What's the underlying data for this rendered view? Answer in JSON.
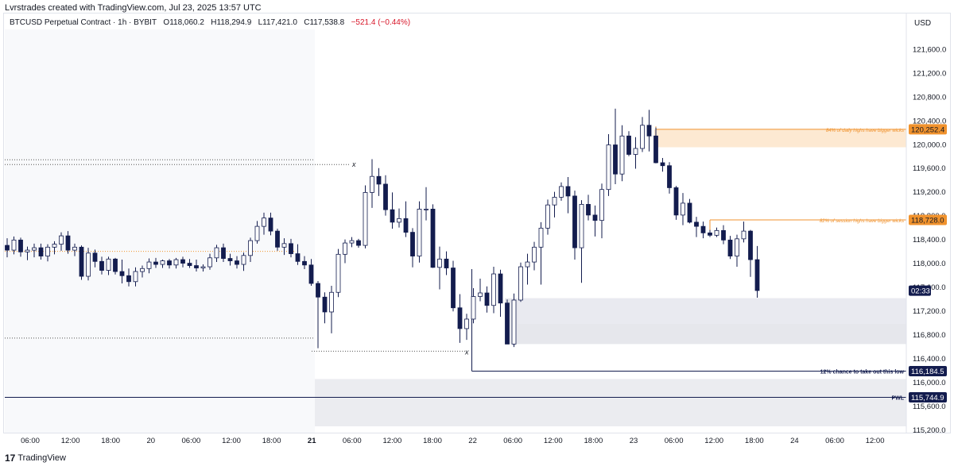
{
  "caption": "Lvrstrades created with TradingView.com, Jul 23, 2025 13:57 UTC",
  "legend": {
    "symbol": "BTCUSD Perpetual Contract · 1h · BYBIT",
    "open": "O118,060.2",
    "high": "H118,294.9",
    "low": "L117,421.0",
    "close": "C117,538.8",
    "change": "−521.4 (−0.44%)"
  },
  "currency": "USD",
  "brand": {
    "logo": "17",
    "name": "TradingView"
  },
  "colors": {
    "up_body": "#ffffff",
    "down_body": "#131c4e",
    "wick": "#131c4e",
    "orange": "#f0922d",
    "navy": "#131c4e",
    "zone_blue": "#d1d4dc",
    "zone_orange": "#fde9d2",
    "zone_grey": "#ebecf0"
  },
  "chart_data": {
    "type": "candlestick",
    "y_axis": {
      "min": 115150,
      "max": 122200,
      "ticks": [
        121600,
        121200,
        120800,
        120400,
        120000,
        119600,
        119200,
        118800,
        118400,
        118000,
        117600,
        117200,
        116800,
        116400,
        116000,
        115600,
        115200
      ],
      "tick_labels": [
        "121,600.0",
        "121,200.0",
        "120,800.0",
        "120,400.0",
        "120,000.0",
        "119,600.0",
        "119,200.0",
        "118,800.0",
        "118,400.0",
        "118,000.0",
        "117,600.0",
        "117,200.0",
        "116,800.0",
        "116,400.0",
        "116,000.0",
        "115,600.0",
        "115,200.0"
      ]
    },
    "x_axis": {
      "ticks": [
        "06:00",
        "12:00",
        "18:00",
        "20",
        "06:00",
        "12:00",
        "18:00",
        "21",
        "06:00",
        "12:00",
        "18:00",
        "22",
        "06:00",
        "12:00",
        "18:00",
        "23",
        "06:00",
        "12:00",
        "18:00",
        "24",
        "06:00",
        "12:00"
      ],
      "bold": [
        false,
        false,
        false,
        false,
        false,
        false,
        false,
        true,
        false,
        false,
        false,
        false,
        false,
        false,
        false,
        false,
        false,
        false,
        false,
        false,
        false,
        false
      ]
    },
    "candles": [
      [
        118300,
        118420,
        118100,
        118220
      ],
      [
        118220,
        118450,
        118150,
        118390
      ],
      [
        118390,
        118430,
        118110,
        118190
      ],
      [
        118190,
        118280,
        118050,
        118220
      ],
      [
        118220,
        118330,
        118100,
        118260
      ],
      [
        118260,
        118330,
        118060,
        118120
      ],
      [
        118120,
        118320,
        118030,
        118270
      ],
      [
        118270,
        118370,
        118150,
        118320
      ],
      [
        118320,
        118520,
        118210,
        118460
      ],
      [
        118460,
        118540,
        118160,
        118220
      ],
      [
        118220,
        118330,
        118120,
        118270
      ],
      [
        118270,
        118300,
        117720,
        117780
      ],
      [
        117780,
        118260,
        117710,
        118170
      ],
      [
        118170,
        118230,
        117930,
        118030
      ],
      [
        118030,
        118110,
        117810,
        117880
      ],
      [
        117880,
        118110,
        117800,
        118070
      ],
      [
        118070,
        118090,
        117810,
        117860
      ],
      [
        117860,
        118060,
        117660,
        117790
      ],
      [
        117790,
        117910,
        117610,
        117690
      ],
      [
        117690,
        117930,
        117610,
        117860
      ],
      [
        117860,
        117960,
        117760,
        117910
      ],
      [
        117910,
        118080,
        117830,
        118020
      ],
      [
        118020,
        118090,
        117920,
        117980
      ],
      [
        117980,
        118060,
        117920,
        118040
      ],
      [
        118040,
        118070,
        117910,
        117970
      ],
      [
        117970,
        118090,
        117910,
        118060
      ],
      [
        118060,
        118110,
        117930,
        118000
      ],
      [
        118000,
        118070,
        117920,
        117960
      ],
      [
        117960,
        118060,
        117860,
        117920
      ],
      [
        117920,
        117980,
        117860,
        117940
      ],
      [
        117940,
        118160,
        117890,
        118090
      ],
      [
        118090,
        118310,
        118020,
        118260
      ],
      [
        118260,
        118330,
        118020,
        118080
      ],
      [
        118080,
        118160,
        117960,
        118040
      ],
      [
        118040,
        118120,
        117910,
        117980
      ],
      [
        117980,
        118180,
        117870,
        118130
      ],
      [
        118130,
        118430,
        118020,
        118380
      ],
      [
        118380,
        118710,
        118330,
        118620
      ],
      [
        118620,
        118850,
        118480,
        118760
      ],
      [
        118760,
        118850,
        118470,
        118540
      ],
      [
        118540,
        118580,
        118210,
        118270
      ],
      [
        118270,
        118420,
        118140,
        118330
      ],
      [
        118330,
        118410,
        118100,
        118160
      ],
      [
        118160,
        118320,
        117970,
        118030
      ],
      [
        118030,
        118120,
        117900,
        117970
      ],
      [
        117970,
        118070,
        117620,
        117660
      ],
      [
        117660,
        117700,
        116570,
        117430
      ],
      [
        117430,
        117510,
        116990,
        117180
      ],
      [
        117180,
        117620,
        116820,
        117510
      ],
      [
        117510,
        118240,
        117430,
        118150
      ],
      [
        118150,
        118400,
        118000,
        118340
      ],
      [
        118340,
        118440,
        118270,
        118380
      ],
      [
        118380,
        118410,
        118260,
        118300
      ],
      [
        118300,
        119310,
        118250,
        119190
      ],
      [
        119190,
        119750,
        118930,
        119460
      ],
      [
        119460,
        119600,
        119130,
        119330
      ],
      [
        119330,
        119480,
        118800,
        118900
      ],
      [
        118900,
        119190,
        118580,
        118690
      ],
      [
        118690,
        118920,
        118600,
        118750
      ],
      [
        118750,
        119040,
        118440,
        118520
      ],
      [
        118520,
        118590,
        117930,
        118120
      ],
      [
        118120,
        119040,
        118010,
        118910
      ],
      [
        118910,
        119280,
        118720,
        118910
      ],
      [
        118910,
        118990,
        117920,
        117930
      ],
      [
        117930,
        118280,
        117560,
        118070
      ],
      [
        118070,
        118200,
        117800,
        117920
      ],
      [
        117920,
        118040,
        117190,
        117250
      ],
      [
        117250,
        117480,
        116660,
        116900
      ],
      [
        116900,
        117150,
        116710,
        117060
      ],
      [
        117060,
        117580,
        116990,
        117440
      ],
      [
        117440,
        117740,
        117360,
        117500
      ],
      [
        117500,
        117610,
        117170,
        117290
      ],
      [
        117290,
        117940,
        117160,
        117820
      ],
      [
        117820,
        117890,
        117100,
        117330
      ],
      [
        117330,
        117390,
        116650,
        116640
      ],
      [
        116640,
        117490,
        116590,
        117380
      ],
      [
        117380,
        118010,
        117350,
        117940
      ],
      [
        117940,
        118160,
        117640,
        118020
      ],
      [
        118020,
        118360,
        117880,
        118270
      ],
      [
        118270,
        118690,
        117640,
        118590
      ],
      [
        118590,
        119070,
        118480,
        118980
      ],
      [
        118980,
        119200,
        118770,
        119110
      ],
      [
        119110,
        119360,
        119050,
        119290
      ],
      [
        119290,
        119450,
        118840,
        119130
      ],
      [
        119130,
        119220,
        118060,
        118260
      ],
      [
        118260,
        119060,
        117670,
        118990
      ],
      [
        118990,
        119150,
        118720,
        118810
      ],
      [
        118810,
        118970,
        118450,
        118720
      ],
      [
        118720,
        119340,
        118420,
        119240
      ],
      [
        119240,
        120170,
        119130,
        119990
      ],
      [
        119990,
        120600,
        119330,
        119500
      ],
      [
        119500,
        120320,
        119380,
        120140
      ],
      [
        120140,
        120220,
        119800,
        119830
      ],
      [
        119830,
        120120,
        119590,
        119930
      ],
      [
        119930,
        120460,
        119870,
        120320
      ],
      [
        120320,
        120580,
        119880,
        120140
      ],
      [
        120140,
        120280,
        119680,
        119690
      ],
      [
        119690,
        119770,
        119540,
        119640
      ],
      [
        119640,
        119700,
        119170,
        119270
      ],
      [
        119270,
        119300,
        118730,
        118810
      ],
      [
        118810,
        119180,
        118640,
        119010
      ],
      [
        119010,
        119080,
        118670,
        118690
      ],
      [
        118690,
        118780,
        118440,
        118620
      ],
      [
        118620,
        118700,
        118420,
        118510
      ],
      [
        118510,
        118560,
        118440,
        118470
      ],
      [
        118470,
        118600,
        118440,
        118550
      ],
      [
        118550,
        118640,
        118320,
        118390
      ],
      [
        118390,
        118460,
        118070,
        118120
      ],
      [
        118120,
        118480,
        117940,
        118410
      ],
      [
        118410,
        118700,
        118350,
        118540
      ],
      [
        118540,
        118560,
        117770,
        118060
      ],
      [
        118060,
        118290,
        117420,
        117540
      ]
    ],
    "hlines": [
      {
        "label": "12% chance to take out this low",
        "value": 116184.5,
        "badge": "116,184.5"
      },
      {
        "label": "PWL",
        "value": 115744.9,
        "badge": "115,744.9"
      },
      {
        "label": "84% of daily highs have bigger wicks",
        "value": 120252.4,
        "badge": "120,252.4"
      },
      {
        "label": "82% of session highs have bigger wicks",
        "value": 118728.0,
        "badge": "118,728.0"
      }
    ],
    "current_price": {
      "value": 117538.8,
      "countdown": "02:33"
    },
    "marker": "x"
  }
}
